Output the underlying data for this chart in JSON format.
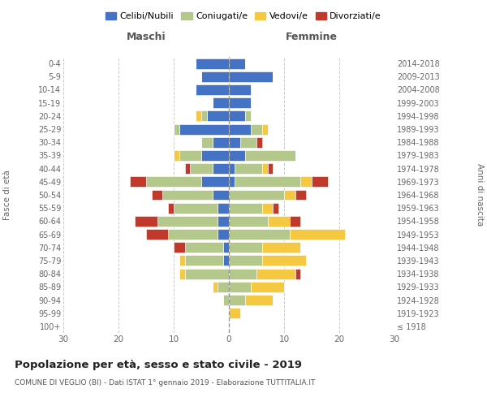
{
  "age_groups": [
    "100+",
    "95-99",
    "90-94",
    "85-89",
    "80-84",
    "75-79",
    "70-74",
    "65-69",
    "60-64",
    "55-59",
    "50-54",
    "45-49",
    "40-44",
    "35-39",
    "30-34",
    "25-29",
    "20-24",
    "15-19",
    "10-14",
    "5-9",
    "0-4"
  ],
  "birth_years": [
    "≤ 1918",
    "1919-1923",
    "1924-1928",
    "1929-1933",
    "1934-1938",
    "1939-1943",
    "1944-1948",
    "1949-1953",
    "1954-1958",
    "1959-1963",
    "1964-1968",
    "1969-1973",
    "1974-1978",
    "1979-1983",
    "1984-1988",
    "1989-1993",
    "1994-1998",
    "1999-2003",
    "2004-2008",
    "2009-2013",
    "2014-2018"
  ],
  "colors": {
    "celibe": "#4472c4",
    "coniugato": "#b3c88a",
    "vedovo": "#f5c842",
    "divorziato": "#c0392b"
  },
  "males": {
    "celibe": [
      0,
      0,
      0,
      0,
      0,
      1,
      1,
      2,
      2,
      2,
      3,
      5,
      3,
      5,
      3,
      9,
      4,
      3,
      6,
      5,
      6
    ],
    "coniugato": [
      0,
      0,
      1,
      2,
      8,
      7,
      7,
      9,
      11,
      8,
      9,
      10,
      4,
      4,
      2,
      1,
      1,
      0,
      0,
      0,
      0
    ],
    "vedovo": [
      0,
      0,
      0,
      1,
      1,
      1,
      0,
      0,
      0,
      0,
      0,
      0,
      0,
      1,
      0,
      0,
      1,
      0,
      0,
      0,
      0
    ],
    "divorziato": [
      0,
      0,
      0,
      0,
      0,
      0,
      2,
      4,
      4,
      1,
      2,
      3,
      1,
      0,
      0,
      0,
      0,
      0,
      0,
      0,
      0
    ]
  },
  "females": {
    "celibe": [
      0,
      0,
      0,
      0,
      0,
      0,
      0,
      0,
      0,
      0,
      0,
      1,
      1,
      3,
      2,
      4,
      3,
      4,
      4,
      8,
      3
    ],
    "coniugato": [
      0,
      0,
      3,
      4,
      5,
      6,
      6,
      11,
      7,
      6,
      10,
      12,
      5,
      9,
      3,
      2,
      1,
      0,
      0,
      0,
      0
    ],
    "vedovo": [
      0,
      2,
      5,
      6,
      7,
      8,
      7,
      10,
      4,
      2,
      2,
      2,
      1,
      0,
      0,
      1,
      0,
      0,
      0,
      0,
      0
    ],
    "divorziato": [
      0,
      0,
      0,
      0,
      1,
      0,
      0,
      0,
      2,
      1,
      2,
      3,
      1,
      0,
      1,
      0,
      0,
      0,
      0,
      0,
      0
    ]
  },
  "xlim": 30,
  "title": "Popolazione per età, sesso e stato civile - 2019",
  "subtitle": "COMUNE DI VEGLIO (BI) - Dati ISTAT 1° gennaio 2019 - Elaborazione TUTTITALIA.IT",
  "legend_labels": [
    "Celibi/Nubili",
    "Coniugati/e",
    "Vedovi/e",
    "Divorziati/e"
  ]
}
